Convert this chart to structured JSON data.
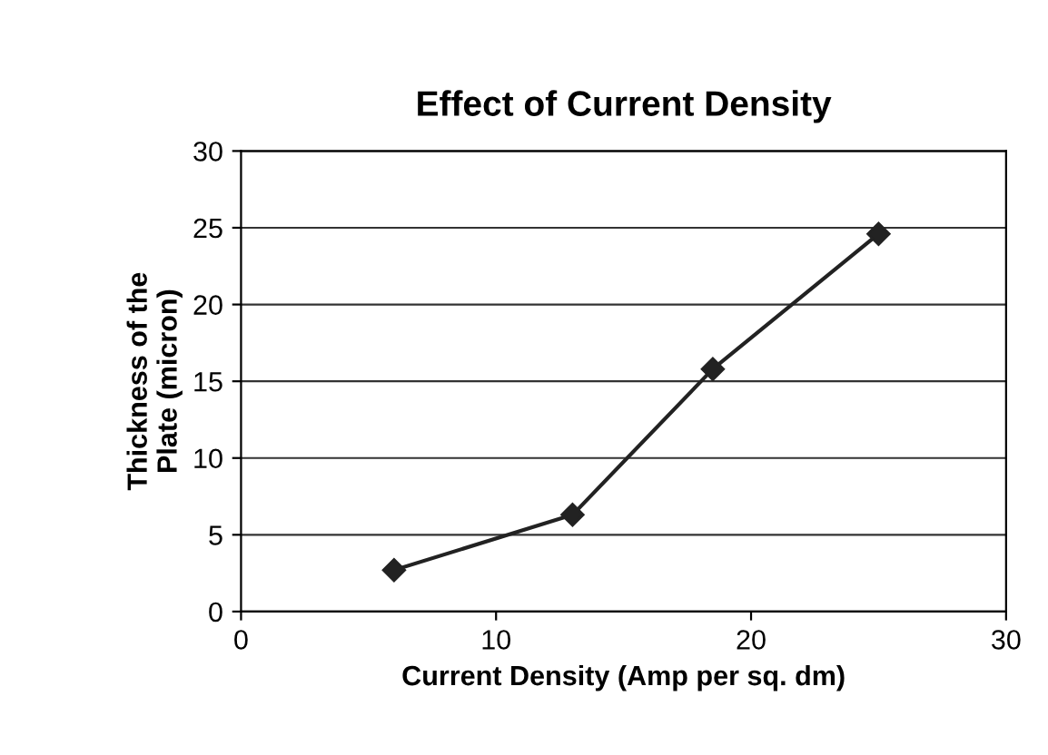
{
  "chart_data": {
    "type": "line",
    "title": "Effect of Current Density",
    "xlabel": "Current Density (Amp per sq. dm)",
    "ylabel": "Thickness of the\nPlate (micron)",
    "x": [
      6,
      13,
      18.5,
      25
    ],
    "series": [
      {
        "color": "#222222",
        "values": [
          2.7,
          6.3,
          15.8,
          24.6
        ]
      }
    ],
    "xlim": [
      0,
      30
    ],
    "xticks": [
      0,
      10,
      20,
      30
    ],
    "ylim": [
      0,
      30
    ],
    "yticks": [
      0,
      5,
      10,
      15,
      20,
      25,
      30
    ],
    "grid": "y",
    "marker": "diamond",
    "line_style": "solid",
    "legend": false
  }
}
